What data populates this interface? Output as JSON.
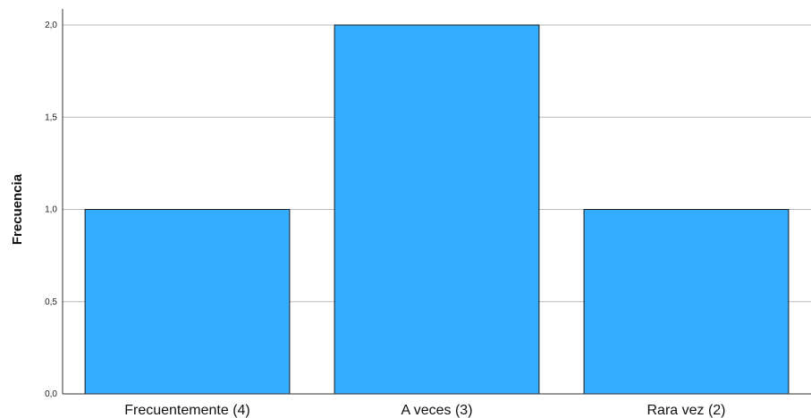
{
  "chart_data": {
    "type": "bar",
    "categories": [
      "Frecuentemente (4)",
      "A veces (3)",
      "Rara vez (2)"
    ],
    "values": [
      1.0,
      2.0,
      1.0
    ],
    "xlabel": "",
    "ylabel": "Frecuencia",
    "ylim": [
      0,
      2.0
    ],
    "yticks": [
      0,
      0.5,
      1.0,
      1.5,
      2.0
    ],
    "ytick_labels": [
      "0,0",
      "0,5",
      "1,0",
      "1,5",
      "2,0"
    ],
    "grid": "horizontal",
    "colors": {
      "bar_fill": "#33adff",
      "bar_stroke": "#1a1a1a",
      "grid": "#b8b8b8",
      "axis": "#333333"
    }
  }
}
